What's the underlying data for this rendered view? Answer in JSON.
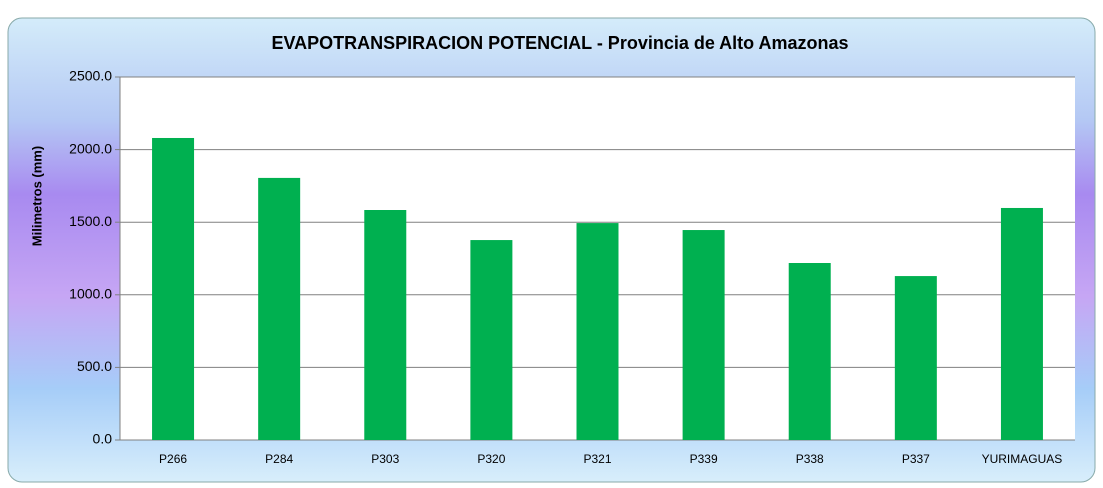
{
  "chart_data": {
    "type": "bar",
    "title": "EVAPOTRANSPIRACION POTENCIAL - Provincia de Alto Amazonas",
    "ylabel": "Milimetros (mm)",
    "categories": [
      "P266",
      "P284",
      "P303",
      "P320",
      "P321",
      "P339",
      "P338",
      "P337",
      "YURIMAGUAS"
    ],
    "values": [
      2080,
      1805,
      1584,
      1377,
      1494,
      1446,
      1219,
      1129,
      1598
    ],
    "color": "#00b050",
    "ylim": [
      0,
      2500
    ],
    "yticks": [
      {
        "value": 0,
        "label": "0.0"
      },
      {
        "value": 500,
        "label": "500.0"
      },
      {
        "value": 1000,
        "label": "1000.0"
      },
      {
        "value": 1500,
        "label": "1500.0"
      },
      {
        "value": 2000,
        "label": "2000.0"
      },
      {
        "value": 2500,
        "label": "2500.0"
      }
    ],
    "grid": true
  }
}
